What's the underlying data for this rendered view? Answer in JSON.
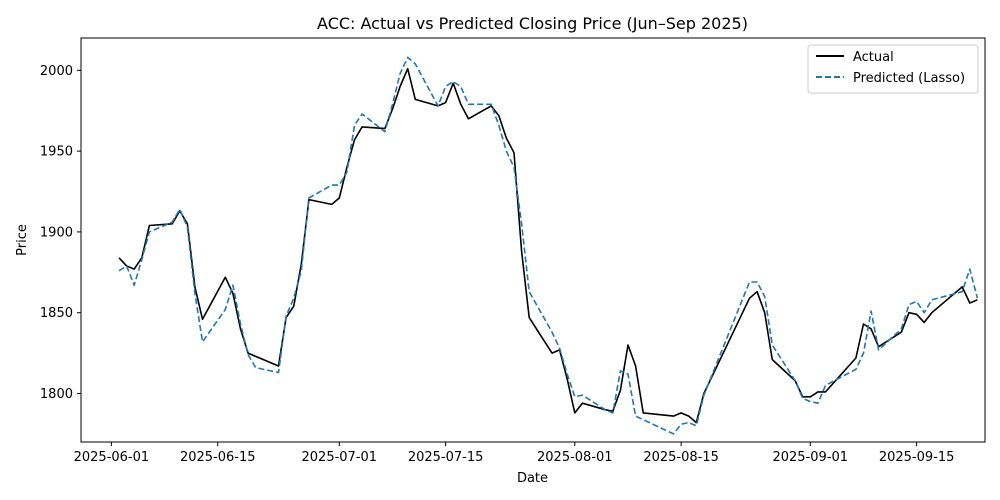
{
  "chart_data": {
    "type": "line",
    "title": "ACC: Actual vs Predicted Closing Price (Jun–Sep 2025)",
    "xlabel": "Date",
    "ylabel": "Price",
    "x_ticks": [
      "2025-06-01",
      "2025-06-15",
      "2025-07-01",
      "2025-07-15",
      "2025-08-01",
      "2025-08-15",
      "2025-09-01",
      "2025-09-15"
    ],
    "y_ticks": [
      1800,
      1850,
      1900,
      1950,
      2000
    ],
    "xlim": [
      "2025-05-28",
      "2025-09-24"
    ],
    "ylim": [
      1770,
      2020
    ],
    "grid": false,
    "legend_position": "top-right",
    "series": [
      {
        "name": "Actual",
        "color": "#000000",
        "style": "solid",
        "points": [
          [
            "2025-06-02",
            1884
          ],
          [
            "2025-06-03",
            1879
          ],
          [
            "2025-06-04",
            1877
          ],
          [
            "2025-06-05",
            1884
          ],
          [
            "2025-06-06",
            1904
          ],
          [
            "2025-06-09",
            1905
          ],
          [
            "2025-06-10",
            1913
          ],
          [
            "2025-06-11",
            1905
          ],
          [
            "2025-06-12",
            1866
          ],
          [
            "2025-06-13",
            1846
          ],
          [
            "2025-06-16",
            1872
          ],
          [
            "2025-06-17",
            1862
          ],
          [
            "2025-06-18",
            1840
          ],
          [
            "2025-06-19",
            1825
          ],
          [
            "2025-06-20",
            1823
          ],
          [
            "2025-06-23",
            1817
          ],
          [
            "2025-06-24",
            1847
          ],
          [
            "2025-06-25",
            1854
          ],
          [
            "2025-06-26",
            1880
          ],
          [
            "2025-06-27",
            1920
          ],
          [
            "2025-06-30",
            1917
          ],
          [
            "2025-07-01",
            1921
          ],
          [
            "2025-07-02",
            1940
          ],
          [
            "2025-07-03",
            1957
          ],
          [
            "2025-07-04",
            1965
          ],
          [
            "2025-07-07",
            1964
          ],
          [
            "2025-07-08",
            1976
          ],
          [
            "2025-07-09",
            1990
          ],
          [
            "2025-07-10",
            2001
          ],
          [
            "2025-07-11",
            1982
          ],
          [
            "2025-07-14",
            1978
          ],
          [
            "2025-07-15",
            1980
          ],
          [
            "2025-07-16",
            1992
          ],
          [
            "2025-07-17",
            1979
          ],
          [
            "2025-07-18",
            1970
          ],
          [
            "2025-07-21",
            1978
          ],
          [
            "2025-07-22",
            1972
          ],
          [
            "2025-07-23",
            1958
          ],
          [
            "2025-07-24",
            1949
          ],
          [
            "2025-07-25",
            1888
          ],
          [
            "2025-07-26",
            1847
          ],
          [
            "2025-07-29",
            1825
          ],
          [
            "2025-07-30",
            1827
          ],
          [
            "2025-07-31",
            1809
          ],
          [
            "2025-08-01",
            1788
          ],
          [
            "2025-08-02",
            1794
          ],
          [
            "2025-08-05",
            1790
          ],
          [
            "2025-08-06",
            1789
          ],
          [
            "2025-08-07",
            1802
          ],
          [
            "2025-08-08",
            1830
          ],
          [
            "2025-08-09",
            1817
          ],
          [
            "2025-08-10",
            1788
          ],
          [
            "2025-08-14",
            1786
          ],
          [
            "2025-08-15",
            1788
          ],
          [
            "2025-08-16",
            1786
          ],
          [
            "2025-08-17",
            1782
          ],
          [
            "2025-08-18",
            1800
          ],
          [
            "2025-08-24",
            1859
          ],
          [
            "2025-08-25",
            1863
          ],
          [
            "2025-08-26",
            1850
          ],
          [
            "2025-08-27",
            1821
          ],
          [
            "2025-08-30",
            1808
          ],
          [
            "2025-08-31",
            1798
          ],
          [
            "2025-09-01",
            1798
          ],
          [
            "2025-09-02",
            1801
          ],
          [
            "2025-09-03",
            1801
          ],
          [
            "2025-09-07",
            1822
          ],
          [
            "2025-09-08",
            1843
          ],
          [
            "2025-09-09",
            1840
          ],
          [
            "2025-09-10",
            1829
          ],
          [
            "2025-09-13",
            1838
          ],
          [
            "2025-09-14",
            1850
          ],
          [
            "2025-09-15",
            1849
          ],
          [
            "2025-09-16",
            1844
          ],
          [
            "2025-09-17",
            1850
          ],
          [
            "2025-09-21",
            1866
          ],
          [
            "2025-09-22",
            1856
          ],
          [
            "2025-09-23",
            1858
          ]
        ]
      },
      {
        "name": "Predicted (Lasso)",
        "color": "#1f77b4",
        "style": "dashed",
        "points": [
          [
            "2025-06-02",
            1876
          ],
          [
            "2025-06-03",
            1879
          ],
          [
            "2025-06-04",
            1867
          ],
          [
            "2025-06-05",
            1883
          ],
          [
            "2025-06-06",
            1900
          ],
          [
            "2025-06-09",
            1906
          ],
          [
            "2025-06-10",
            1914
          ],
          [
            "2025-06-11",
            1903
          ],
          [
            "2025-06-12",
            1862
          ],
          [
            "2025-06-13",
            1832
          ],
          [
            "2025-06-16",
            1852
          ],
          [
            "2025-06-17",
            1867
          ],
          [
            "2025-06-18",
            1843
          ],
          [
            "2025-06-19",
            1824
          ],
          [
            "2025-06-20",
            1816
          ],
          [
            "2025-06-23",
            1813
          ],
          [
            "2025-06-24",
            1848
          ],
          [
            "2025-06-25",
            1859
          ],
          [
            "2025-06-26",
            1876
          ],
          [
            "2025-06-27",
            1921
          ],
          [
            "2025-06-30",
            1929
          ],
          [
            "2025-07-01",
            1929
          ],
          [
            "2025-07-02",
            1937
          ],
          [
            "2025-07-03",
            1966
          ],
          [
            "2025-07-04",
            1973
          ],
          [
            "2025-07-07",
            1962
          ],
          [
            "2025-07-08",
            1979
          ],
          [
            "2025-07-09",
            1998
          ],
          [
            "2025-07-10",
            2008
          ],
          [
            "2025-07-11",
            2004
          ],
          [
            "2025-07-14",
            1978
          ],
          [
            "2025-07-15",
            1990
          ],
          [
            "2025-07-16",
            1993
          ],
          [
            "2025-07-17",
            1990
          ],
          [
            "2025-07-18",
            1979
          ],
          [
            "2025-07-21",
            1979
          ],
          [
            "2025-07-22",
            1966
          ],
          [
            "2025-07-23",
            1950
          ],
          [
            "2025-07-24",
            1940
          ],
          [
            "2025-07-25",
            1905
          ],
          [
            "2025-07-26",
            1863
          ],
          [
            "2025-07-29",
            1838
          ],
          [
            "2025-07-30",
            1828
          ],
          [
            "2025-07-31",
            1812
          ],
          [
            "2025-08-01",
            1798
          ],
          [
            "2025-08-02",
            1799
          ],
          [
            "2025-08-05",
            1790
          ],
          [
            "2025-08-06",
            1788
          ],
          [
            "2025-08-07",
            1814
          ],
          [
            "2025-08-08",
            1812
          ],
          [
            "2025-08-09",
            1786
          ],
          [
            "2025-08-14",
            1775
          ],
          [
            "2025-08-15",
            1781
          ],
          [
            "2025-08-16",
            1782
          ],
          [
            "2025-08-17",
            1780
          ],
          [
            "2025-08-18",
            1799
          ],
          [
            "2025-08-24",
            1869
          ],
          [
            "2025-08-25",
            1869
          ],
          [
            "2025-08-26",
            1860
          ],
          [
            "2025-08-27",
            1830
          ],
          [
            "2025-08-30",
            1808
          ],
          [
            "2025-08-31",
            1797
          ],
          [
            "2025-09-01",
            1795
          ],
          [
            "2025-09-02",
            1794
          ],
          [
            "2025-09-03",
            1805
          ],
          [
            "2025-09-07",
            1815
          ],
          [
            "2025-09-08",
            1825
          ],
          [
            "2025-09-09",
            1851
          ],
          [
            "2025-09-10",
            1827
          ],
          [
            "2025-09-13",
            1840
          ],
          [
            "2025-09-14",
            1855
          ],
          [
            "2025-09-15",
            1857
          ],
          [
            "2025-09-16",
            1850
          ],
          [
            "2025-09-17",
            1858
          ],
          [
            "2025-09-21",
            1863
          ],
          [
            "2025-09-22",
            1877
          ],
          [
            "2025-09-23",
            1859
          ]
        ]
      }
    ]
  }
}
